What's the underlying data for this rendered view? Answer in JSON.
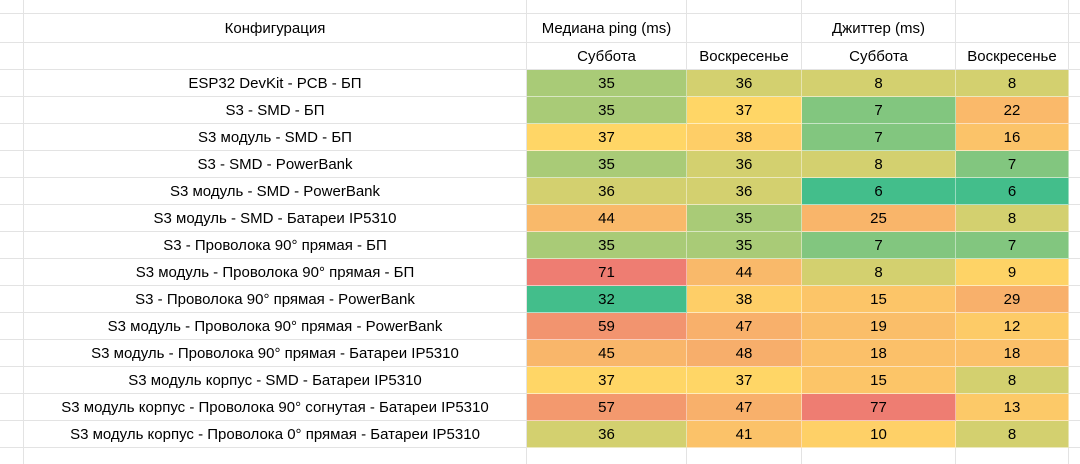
{
  "app": {
    "background_color": "#ffffff",
    "gridline_color": "#e3e3e3",
    "text_color": "#000000"
  },
  "chart_data": {
    "type": "heatmap",
    "title": "",
    "corner_header": "Конфигурация",
    "groups": [
      {
        "label": "Медиана ping (ms)",
        "columns": [
          "Суббота",
          "Воскресенье"
        ]
      },
      {
        "label": "Джиттер (ms)",
        "columns": [
          "Суббота",
          "Воскресенье"
        ]
      }
    ],
    "rows": [
      {
        "config": "ESP32 DevKit - PCB - БП",
        "values": [
          35,
          36,
          8,
          8
        ]
      },
      {
        "config": "S3 - SMD - БП",
        "values": [
          35,
          37,
          7,
          22
        ]
      },
      {
        "config": "S3 модуль - SMD - БП",
        "values": [
          37,
          38,
          7,
          16
        ]
      },
      {
        "config": "S3 - SMD - PowerBank",
        "values": [
          35,
          36,
          8,
          7
        ]
      },
      {
        "config": "S3 модуль - SMD - PowerBank",
        "values": [
          36,
          36,
          6,
          6
        ]
      },
      {
        "config": "S3 модуль - SMD - Батареи IP5310",
        "values": [
          44,
          35,
          25,
          8
        ]
      },
      {
        "config": "S3 - Проволока 90° прямая - БП",
        "values": [
          35,
          35,
          7,
          7
        ]
      },
      {
        "config": "S3 модуль - Проволока 90° прямая - БП",
        "values": [
          71,
          44,
          8,
          9
        ]
      },
      {
        "config": "S3 - Проволока 90° прямая - PowerBank",
        "values": [
          32,
          38,
          15,
          29
        ]
      },
      {
        "config": "S3 модуль - Проволока 90° прямая - PowerBank",
        "values": [
          59,
          47,
          19,
          12
        ]
      },
      {
        "config": "S3 модуль - Проволока 90° прямая - Батареи IP5310",
        "values": [
          45,
          48,
          18,
          18
        ]
      },
      {
        "config": "S3 модуль корпус - SMD - Батареи IP5310",
        "values": [
          37,
          37,
          15,
          8
        ]
      },
      {
        "config": "S3 модуль корпус - Проволока 90° согнутая - Батареи IP5310",
        "values": [
          57,
          47,
          77,
          13
        ]
      },
      {
        "config": "S3 модуль корпус - Проволока 0° прямая - Батареи IP5310",
        "values": [
          36,
          41,
          10,
          8
        ]
      }
    ],
    "color_scale": {
      "min_color": "#43be8b",
      "mid_color": "#ffd666",
      "max_color": "#ee7d72",
      "ping": {
        "min": 32,
        "mid": 37,
        "max": 71
      },
      "jitter": {
        "min": 6,
        "mid": 8.5,
        "max": 77
      }
    }
  }
}
